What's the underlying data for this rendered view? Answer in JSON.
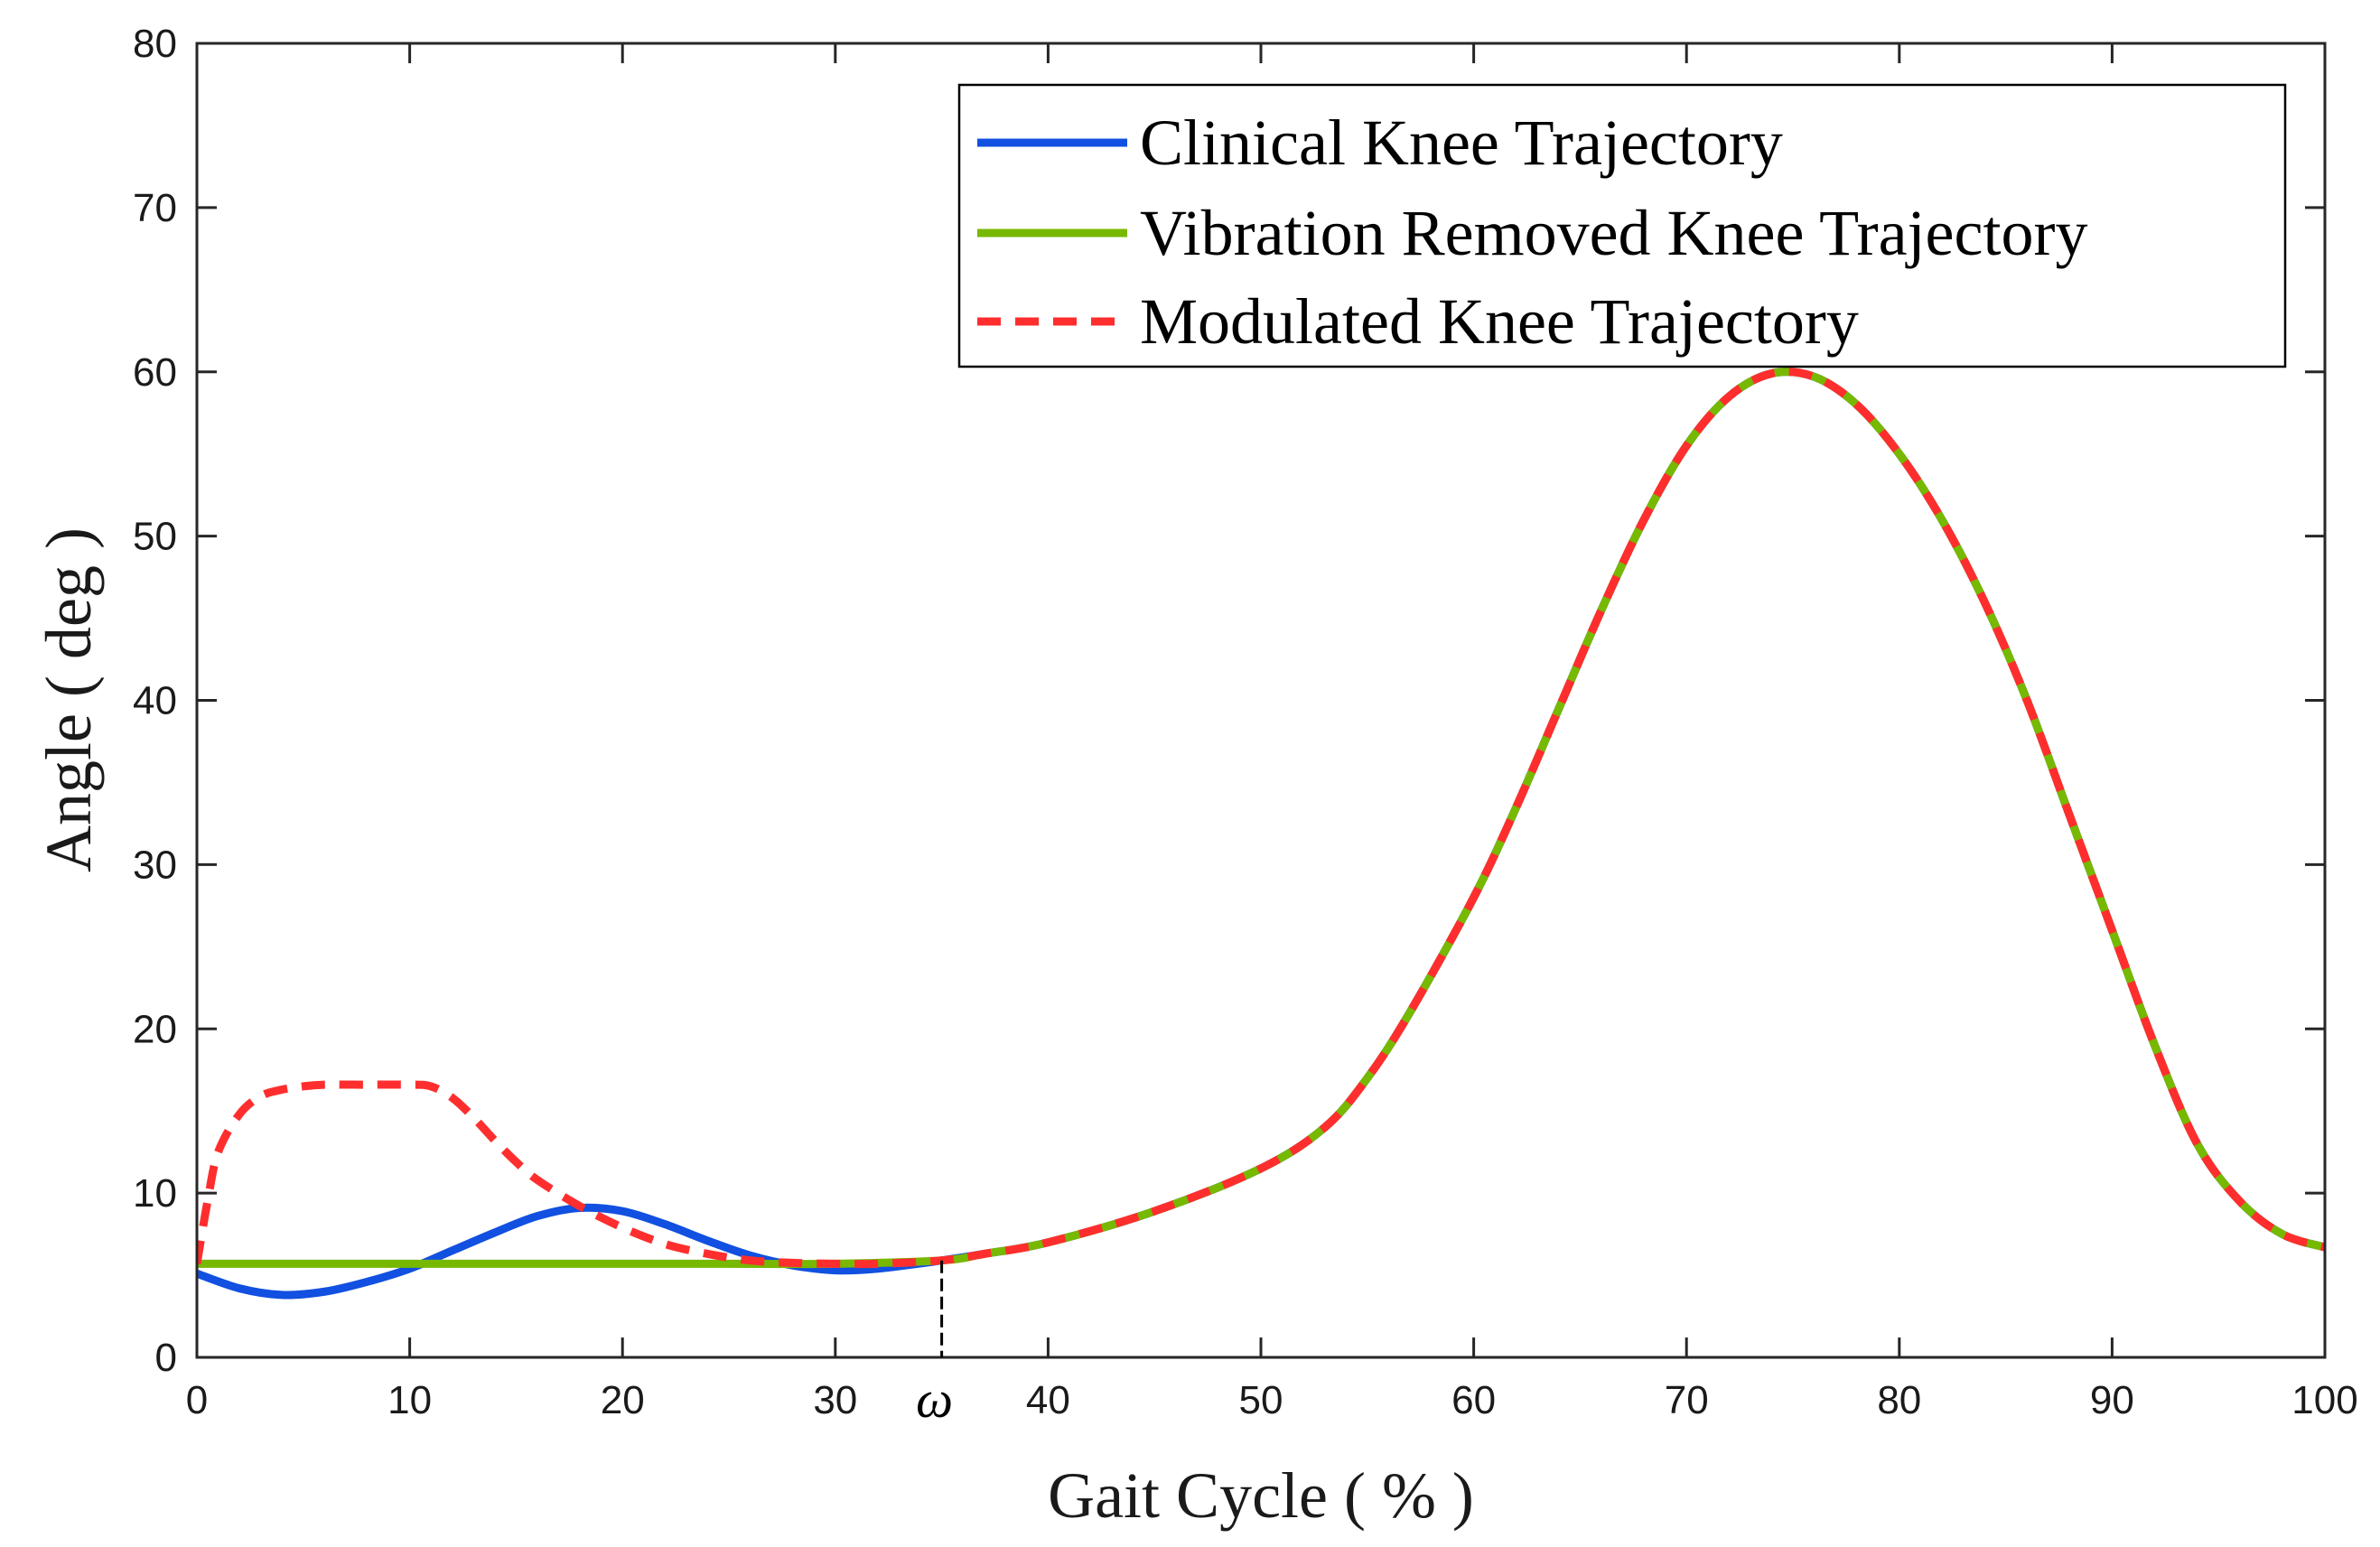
{
  "chart_data": {
    "type": "line",
    "title": "",
    "xlabel": "Gait Cycle ( % )",
    "ylabel": "Angle ( deg )",
    "xlim": [
      0,
      100
    ],
    "ylim": [
      0,
      80
    ],
    "xticks": [
      0,
      10,
      20,
      30,
      40,
      50,
      60,
      70,
      80,
      90,
      100
    ],
    "yticks": [
      0,
      10,
      20,
      30,
      40,
      50,
      60,
      70,
      80
    ],
    "grid": false,
    "legend_position": "top-right",
    "annotation": {
      "label": "ω",
      "x": 35
    },
    "series": [
      {
        "name": "Clinical Knee Trajectory",
        "color": "#1150e0",
        "style": "solid",
        "x": [
          0,
          2,
          4,
          6,
          8,
          10,
          12,
          14,
          16,
          18,
          20,
          22,
          24,
          26,
          28,
          30,
          32,
          35,
          37,
          40,
          45,
          50,
          53,
          55,
          57,
          60,
          62,
          64,
          66,
          68,
          70,
          72,
          74,
          76,
          78,
          80,
          82,
          84,
          86,
          88,
          90,
          92,
          94,
          96,
          98,
          100
        ],
        "values": [
          5.1,
          4.2,
          3.8,
          4.0,
          4.6,
          5.4,
          6.5,
          7.6,
          8.6,
          9.1,
          8.9,
          8.1,
          7.1,
          6.2,
          5.6,
          5.3,
          5.4,
          5.9,
          6.3,
          7.0,
          8.9,
          11.5,
          14.0,
          17.0,
          21.0,
          28.0,
          33.5,
          39.5,
          45.5,
          51.0,
          55.5,
          58.5,
          59.9,
          59.7,
          58.0,
          55.0,
          51.0,
          46.0,
          40.0,
          33.0,
          26.0,
          19.0,
          13.0,
          9.5,
          7.5,
          6.7
        ]
      },
      {
        "name": "Vibration Removed Knee Trajectory",
        "color": "#77b800",
        "style": "solid",
        "x": [
          0,
          5,
          10,
          15,
          20,
          25,
          30,
          35,
          37,
          40,
          45,
          50,
          53,
          55,
          57,
          60,
          62,
          64,
          66,
          68,
          70,
          72,
          74,
          76,
          78,
          80,
          82,
          84,
          86,
          88,
          90,
          92,
          94,
          96,
          98,
          100
        ],
        "values": [
          5.7,
          5.7,
          5.7,
          5.7,
          5.7,
          5.7,
          5.7,
          5.9,
          6.3,
          7.0,
          8.9,
          11.5,
          14.0,
          17.0,
          21.0,
          28.0,
          33.5,
          39.5,
          45.5,
          51.0,
          55.5,
          58.5,
          59.9,
          59.7,
          58.0,
          55.0,
          51.0,
          46.0,
          40.0,
          33.0,
          26.0,
          19.0,
          13.0,
          9.5,
          7.5,
          6.7
        ]
      },
      {
        "name": "Modulated Knee Trajectory",
        "color": "#ff2e2e",
        "style": "dashed",
        "x": [
          0,
          0.5,
          1,
          2,
          3,
          4,
          5,
          6,
          8,
          10,
          11,
          12,
          13,
          14,
          15,
          16,
          18,
          20,
          22,
          24,
          26,
          28,
          30,
          32,
          35,
          37,
          40,
          45,
          50,
          53,
          55,
          57,
          60,
          62,
          64,
          66,
          68,
          70,
          72,
          74,
          76,
          78,
          80,
          82,
          84,
          86,
          88,
          90,
          92,
          94,
          96,
          98,
          100
        ],
        "values": [
          5.7,
          9.5,
          12.5,
          14.8,
          15.9,
          16.3,
          16.5,
          16.6,
          16.6,
          16.6,
          16.5,
          15.8,
          14.6,
          13.2,
          11.9,
          10.8,
          9.2,
          7.9,
          6.9,
          6.3,
          5.9,
          5.75,
          5.7,
          5.7,
          5.9,
          6.3,
          7.0,
          8.9,
          11.5,
          14.0,
          17.0,
          21.0,
          28.0,
          33.5,
          39.5,
          45.5,
          51.0,
          55.5,
          58.5,
          59.9,
          59.7,
          58.0,
          55.0,
          51.0,
          46.0,
          40.0,
          33.0,
          26.0,
          19.0,
          13.0,
          9.5,
          7.5,
          6.7
        ]
      }
    ]
  }
}
